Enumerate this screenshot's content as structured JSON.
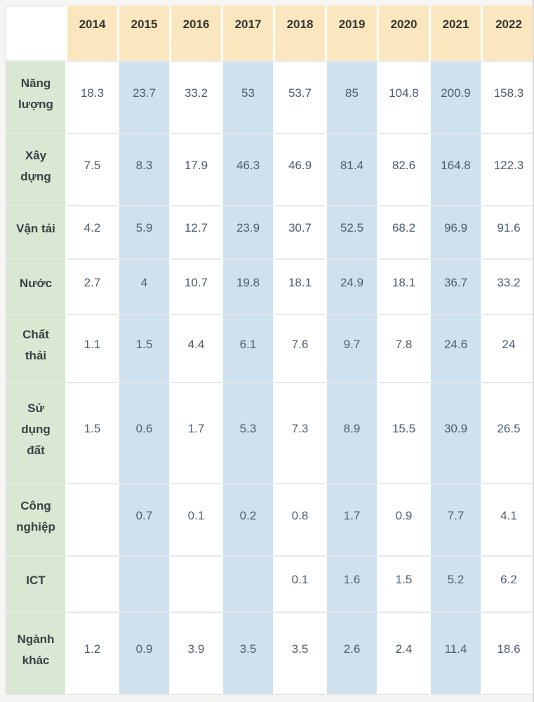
{
  "chart_data": {
    "type": "table",
    "title": "",
    "columns": [
      "",
      "2014",
      "2015",
      "2016",
      "2017",
      "2018",
      "2019",
      "2020",
      "2021",
      "2022"
    ],
    "rows": [
      {
        "label": "Năng lượng",
        "values": [
          18.3,
          23.7,
          33.2,
          53,
          53.7,
          85,
          104.8,
          200.9,
          158.3
        ]
      },
      {
        "label": "Xây dựng",
        "values": [
          7.5,
          8.3,
          17.9,
          46.3,
          46.9,
          81.4,
          82.6,
          164.8,
          122.3
        ]
      },
      {
        "label": "Vận tải",
        "values": [
          4.2,
          5.9,
          12.7,
          23.9,
          30.7,
          52.5,
          68.2,
          96.9,
          91.6
        ]
      },
      {
        "label": "Nước",
        "values": [
          2.7,
          4,
          10.7,
          19.8,
          18.1,
          24.9,
          18.1,
          36.7,
          33.2
        ]
      },
      {
        "label": "Chất thải",
        "values": [
          1.1,
          1.5,
          4.4,
          6.1,
          7.6,
          9.7,
          7.8,
          24.6,
          24
        ]
      },
      {
        "label": "Sử dụng đất",
        "values": [
          1.5,
          0.6,
          1.7,
          5.3,
          7.3,
          8.9,
          15.5,
          30.9,
          26.5
        ]
      },
      {
        "label": "Công nghiệp",
        "values": [
          null,
          0.7,
          0.1,
          0.2,
          0.8,
          1.7,
          0.9,
          7.7,
          4.1
        ]
      },
      {
        "label": "ICT",
        "values": [
          null,
          null,
          null,
          null,
          0.1,
          1.6,
          1.5,
          5.2,
          6.2
        ]
      },
      {
        "label": "Ngành khác",
        "values": [
          1.2,
          0.9,
          3.9,
          3.5,
          3.5,
          2.6,
          2.4,
          11.4,
          18.6
        ]
      }
    ],
    "layout": {
      "banded_columns": [
        "2015",
        "2017",
        "2019",
        "2021"
      ],
      "header_position": "top",
      "label_column_position": "left",
      "grid": "light horizontal separators, white vertical gaps"
    }
  },
  "colors": {
    "header_bg": "#fbe7bf",
    "label_bg": "#d8e8d2",
    "band_bg": "#cfe0ef",
    "year_text": "#39352f",
    "label_text": "#3b4045",
    "num_text": "#4d5d6e"
  }
}
